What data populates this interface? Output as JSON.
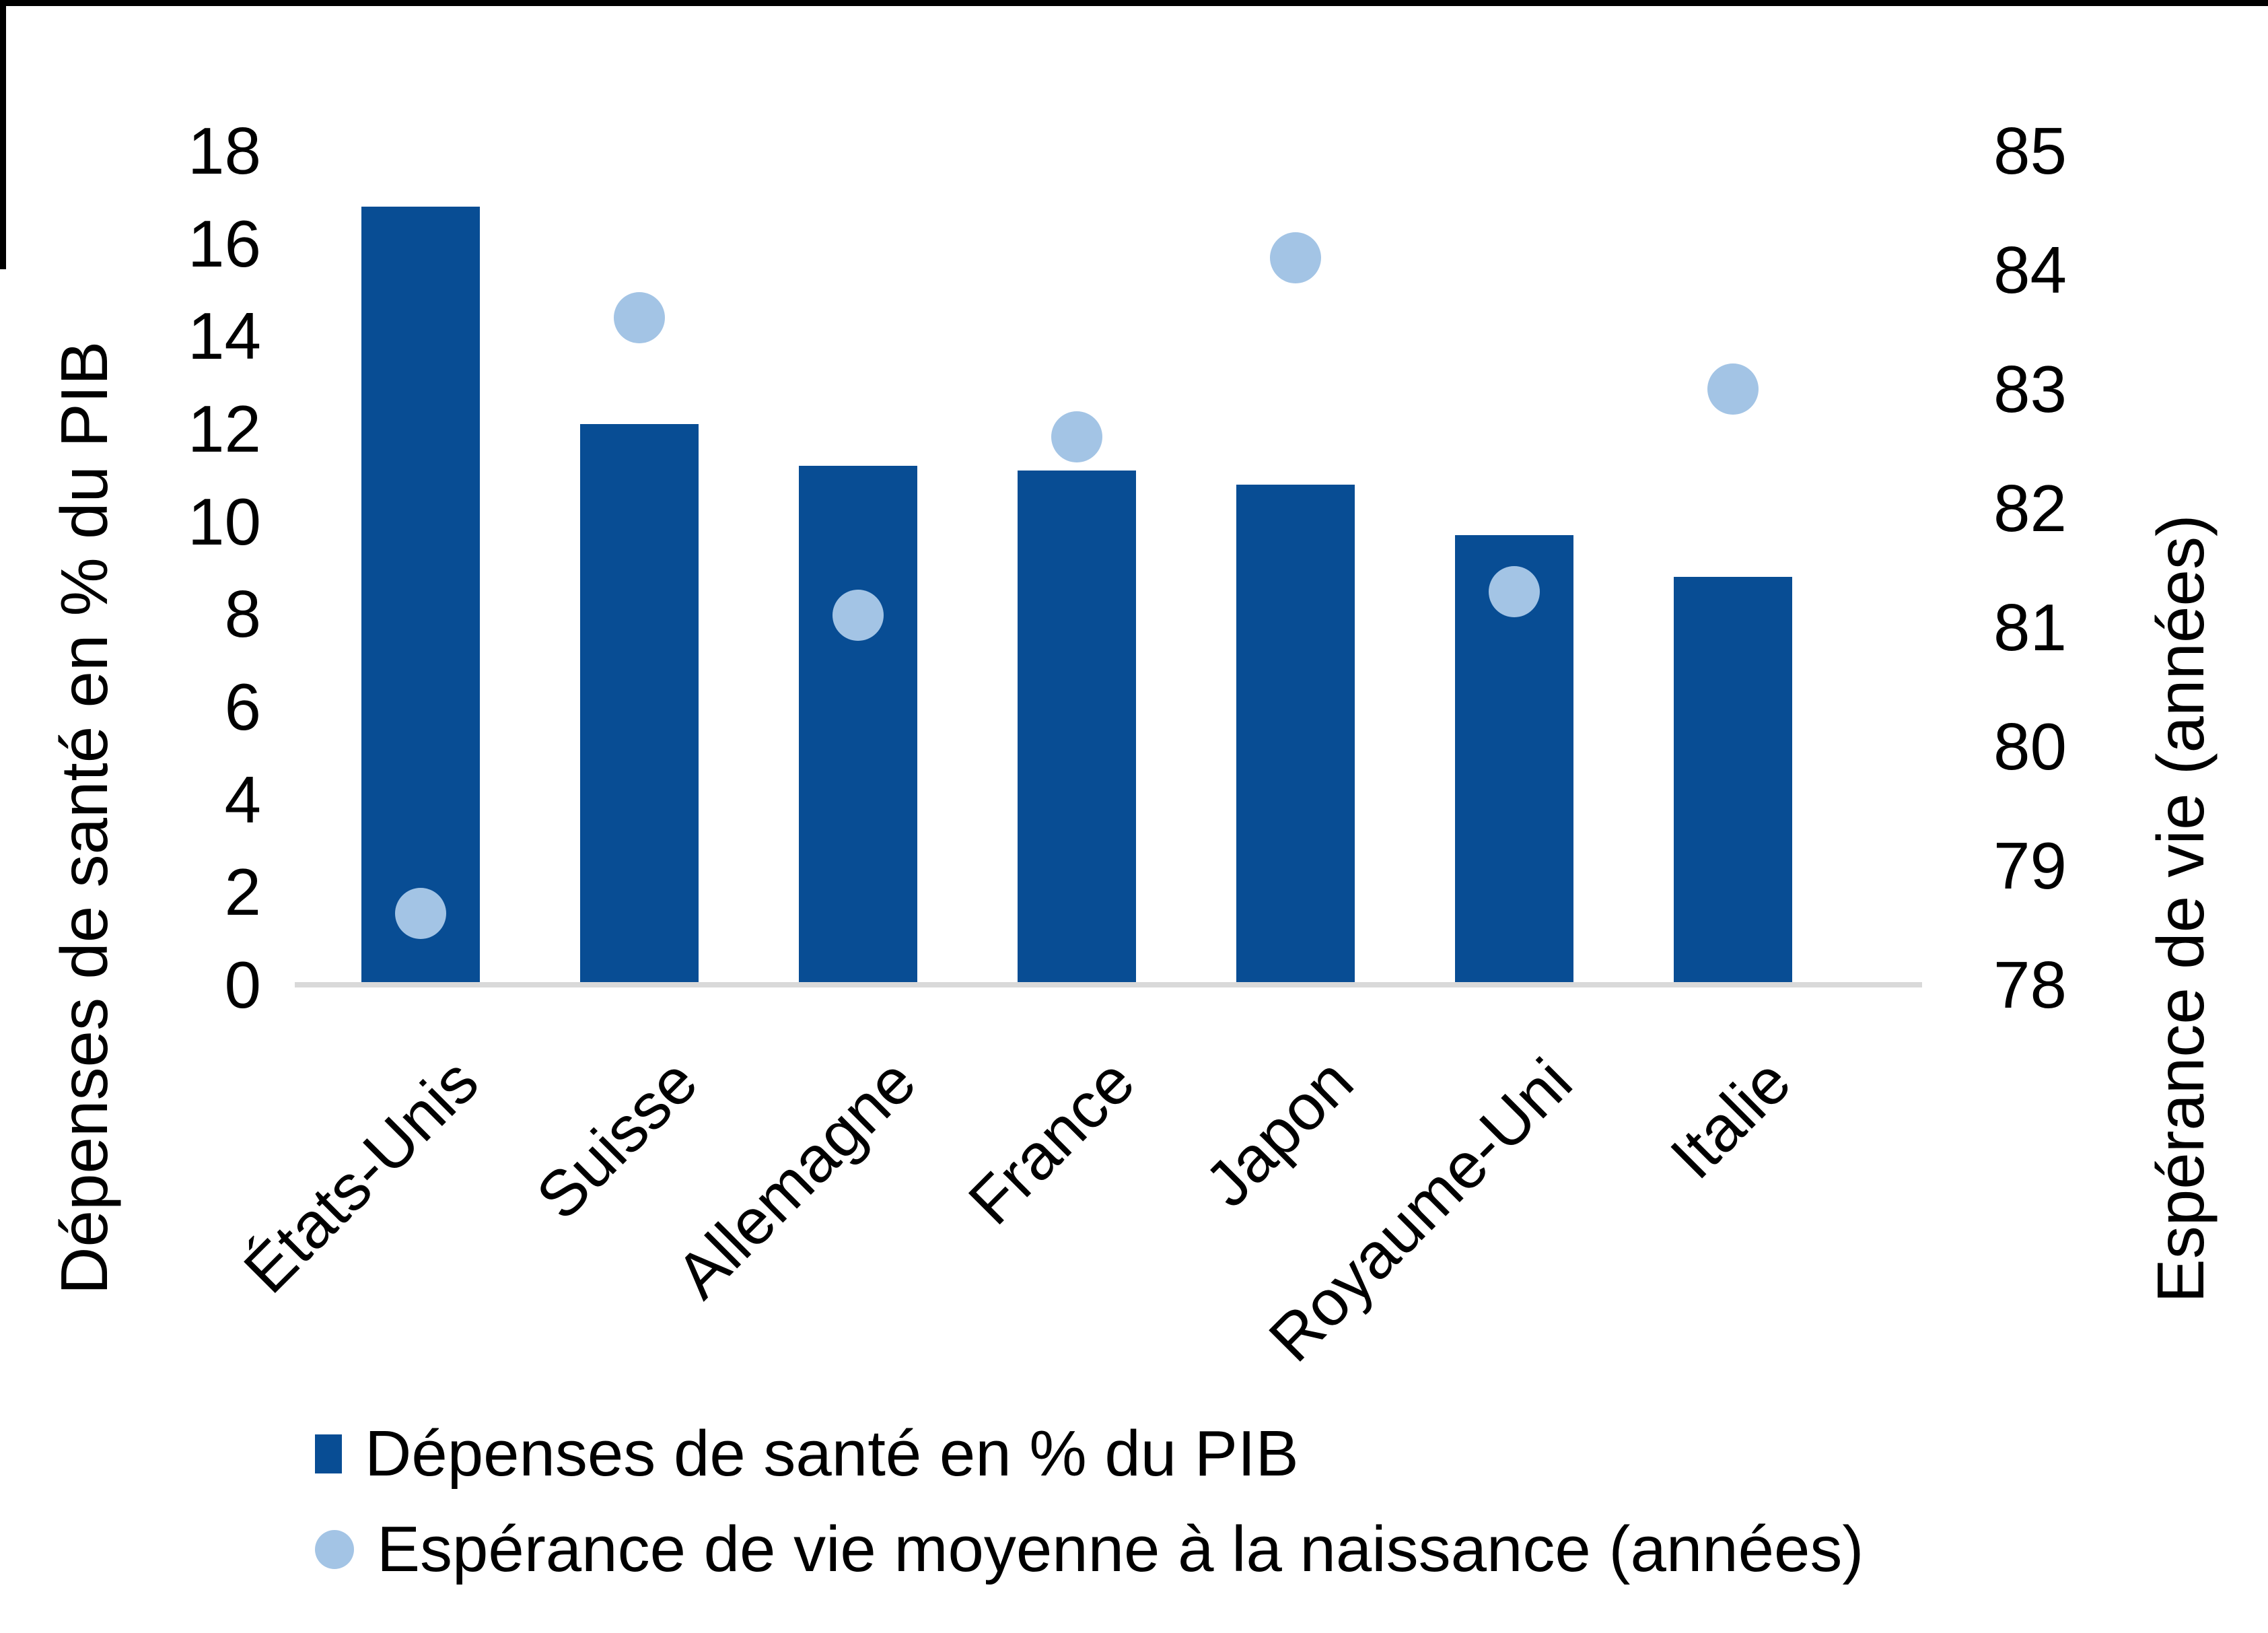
{
  "chart_data": {
    "type": "combo bar + scatter",
    "categories": [
      "États-Unis",
      "Suisse",
      "Allemagne",
      "France",
      "Japon",
      "Royaume-Uni",
      "Italie"
    ],
    "series": [
      {
        "name": "Dépenses de santé en % du PIB",
        "type": "bar",
        "axis": "left",
        "values": [
          16.8,
          12.1,
          11.2,
          11.1,
          10.8,
          9.7,
          8.8
        ],
        "color": "#084D94"
      },
      {
        "name": "Espérance de vie moyenne à la naissance (années)",
        "type": "scatter",
        "axis": "right",
        "values": [
          78.6,
          83.6,
          81.1,
          82.6,
          84.1,
          81.3,
          83.0
        ],
        "color": "#A3C4E5"
      }
    ],
    "left_axis": {
      "title": "Dépenses de santé en % du PIB",
      "min": 0,
      "max": 18,
      "step": 2,
      "ticks": [
        18,
        16,
        14,
        12,
        10,
        8,
        6,
        4,
        2,
        0
      ]
    },
    "right_axis": {
      "title": "Espérance de vie (années)",
      "min": 78,
      "max": 85,
      "step": 1,
      "ticks": [
        85,
        84,
        83,
        82,
        81,
        80,
        79,
        78
      ]
    },
    "legend_position": "bottom",
    "grid": false,
    "axis_line_color": "#D9D9D9",
    "background_color": "#FFFFFF"
  }
}
